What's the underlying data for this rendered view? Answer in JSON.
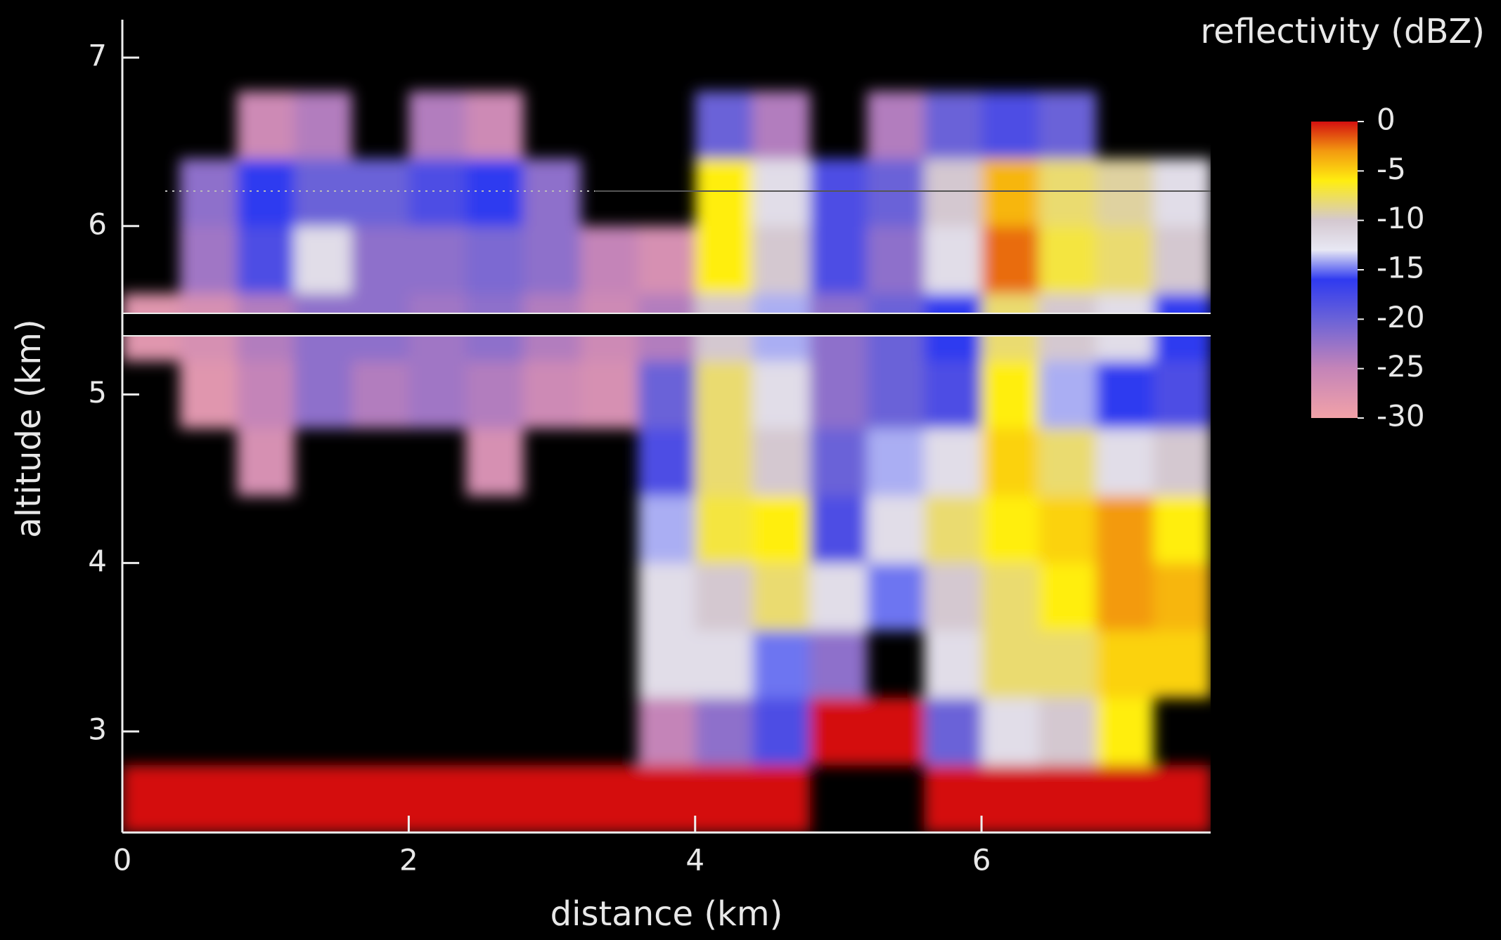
{
  "chart_data": {
    "type": "heatmap",
    "xlabel": "distance (km)",
    "ylabel": "altitude (km)",
    "xlim": [
      0,
      7.6
    ],
    "ylim": [
      2.4,
      7.2
    ],
    "xticks": [
      0,
      2,
      4,
      6
    ],
    "yticks": [
      3,
      4,
      5,
      6,
      7
    ],
    "x_edges": [
      0,
      0.4,
      0.8,
      1.2,
      1.6,
      2.0,
      2.4,
      2.8,
      3.2,
      3.6,
      4.0,
      4.4,
      4.8,
      5.2,
      5.6,
      6.0,
      6.4,
      6.8,
      7.2,
      7.6
    ],
    "y_edges": [
      2.4,
      2.8,
      3.2,
      3.6,
      4.0,
      4.4,
      4.8,
      5.2,
      5.6,
      6.0,
      6.4,
      6.8,
      7.2
    ],
    "z": [
      [
        0,
        0,
        0,
        0,
        0,
        0,
        0,
        0,
        0,
        0,
        0,
        0,
        null,
        null,
        0,
        0,
        0,
        0,
        0
      ],
      [
        null,
        null,
        null,
        null,
        null,
        null,
        null,
        null,
        null,
        -25,
        -22,
        -18,
        0,
        0,
        -20,
        -12,
        -10,
        -6,
        null
      ],
      [
        null,
        null,
        null,
        null,
        null,
        null,
        null,
        null,
        null,
        -12,
        -12,
        -15,
        -22,
        null,
        -12,
        -8,
        -8,
        -5,
        -5
      ],
      [
        null,
        null,
        null,
        null,
        null,
        null,
        null,
        null,
        null,
        -12,
        -10,
        -8,
        -12,
        -15,
        -10,
        -8,
        -6,
        -3,
        -4
      ],
      [
        null,
        null,
        null,
        null,
        null,
        null,
        null,
        null,
        null,
        -14,
        -7,
        -6,
        -18,
        -12,
        -8,
        -6,
        -5,
        -3,
        -6
      ],
      [
        null,
        null,
        -27,
        null,
        null,
        null,
        -27,
        null,
        null,
        -18,
        -8,
        -10,
        -20,
        -14,
        -12,
        -5,
        -8,
        -12,
        -10
      ],
      [
        null,
        -28,
        -25,
        -22,
        -24,
        -23,
        -24,
        -26,
        -27,
        -20,
        -8,
        -12,
        -22,
        -20,
        -18,
        -6,
        -14,
        -16,
        -18
      ],
      [
        -28,
        -27,
        -24,
        -22,
        -22,
        -23,
        -22,
        -24,
        -26,
        -24,
        -10,
        -14,
        -22,
        -20,
        -16,
        -8,
        -10,
        -12,
        -16
      ],
      [
        null,
        -23,
        -18,
        -12,
        -22,
        -22,
        -21,
        -22,
        -25,
        -27,
        -6,
        -10,
        -18,
        -22,
        -12,
        -2,
        -7,
        -8,
        -10
      ],
      [
        null,
        -22,
        -16,
        -20,
        -20,
        -18,
        -16,
        -22,
        null,
        null,
        -6,
        -12,
        -18,
        -20,
        -10,
        -4,
        -8,
        -9,
        -12
      ],
      [
        null,
        null,
        -26,
        -24,
        null,
        -24,
        -26,
        null,
        null,
        null,
        -20,
        -24,
        null,
        -24,
        -20,
        -18,
        -20,
        null,
        null
      ],
      [
        null,
        null,
        null,
        null,
        null,
        null,
        null,
        null,
        null,
        null,
        null,
        null,
        null,
        null,
        null,
        null,
        null,
        null,
        null
      ]
    ],
    "colorbar": {
      "title": "reflectivity (dBZ)",
      "lim": [
        -30,
        0
      ],
      "ticks": [
        0,
        -5,
        -10,
        -15,
        -20,
        -25,
        -30
      ]
    },
    "colorscale": [
      {
        "value": -30,
        "color": "#f2a2a8"
      },
      {
        "value": -25,
        "color": "#c484b8"
      },
      {
        "value": -20,
        "color": "#6a62d8"
      },
      {
        "value": -16,
        "color": "#2f3af0"
      },
      {
        "value": -13,
        "color": "#e8e8f4"
      },
      {
        "value": -10,
        "color": "#d4c8d0"
      },
      {
        "value": -6,
        "color": "#ffee10"
      },
      {
        "value": -3,
        "color": "#f39a10"
      },
      {
        "value": 0,
        "color": "#d41010"
      }
    ]
  }
}
